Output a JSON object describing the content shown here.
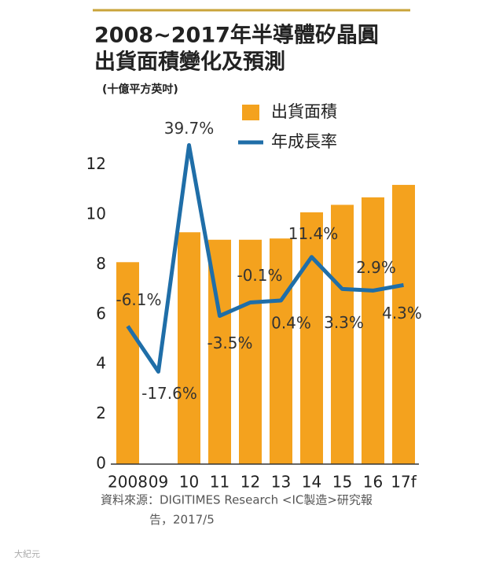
{
  "chart_data": {
    "type": "bar-line",
    "title": [
      "2008~2017年半導體矽晶圓",
      "出貨面積變化及預測"
    ],
    "subtitle": "(十億平方英吋)",
    "categories": [
      "2008",
      "09",
      "10",
      "11",
      "12",
      "13",
      "14",
      "15",
      "16",
      "17f"
    ],
    "series": [
      {
        "name": "出貨面積",
        "type": "bar",
        "color": "#f4a21e",
        "values": [
          8.1,
          null,
          9.3,
          9.0,
          9.0,
          9.05,
          10.1,
          10.4,
          10.7,
          11.2
        ]
      },
      {
        "name": "年成長率",
        "type": "line",
        "axis": "y2",
        "color": "#1f6ea8",
        "values": [
          -6.1,
          -17.6,
          39.7,
          -3.5,
          -0.1,
          0.4,
          11.4,
          3.3,
          2.9,
          4.3
        ],
        "value_labels": [
          "-6.1%",
          "-17.6%",
          "39.7%",
          "-3.5%",
          "-0.1%",
          "0.4%",
          "11.4%",
          "3.3%",
          "2.9%",
          "4.3%"
        ]
      }
    ],
    "ylim": [
      0,
      13
    ],
    "yticks": [
      0,
      2,
      4,
      6,
      8,
      10,
      12
    ],
    "y2lim": [
      -41,
      41
    ],
    "source": [
      "資料來源：DIGITIMES Research <IC製造>研究報",
      "告，2017/5"
    ],
    "watermark": "大紀元"
  }
}
